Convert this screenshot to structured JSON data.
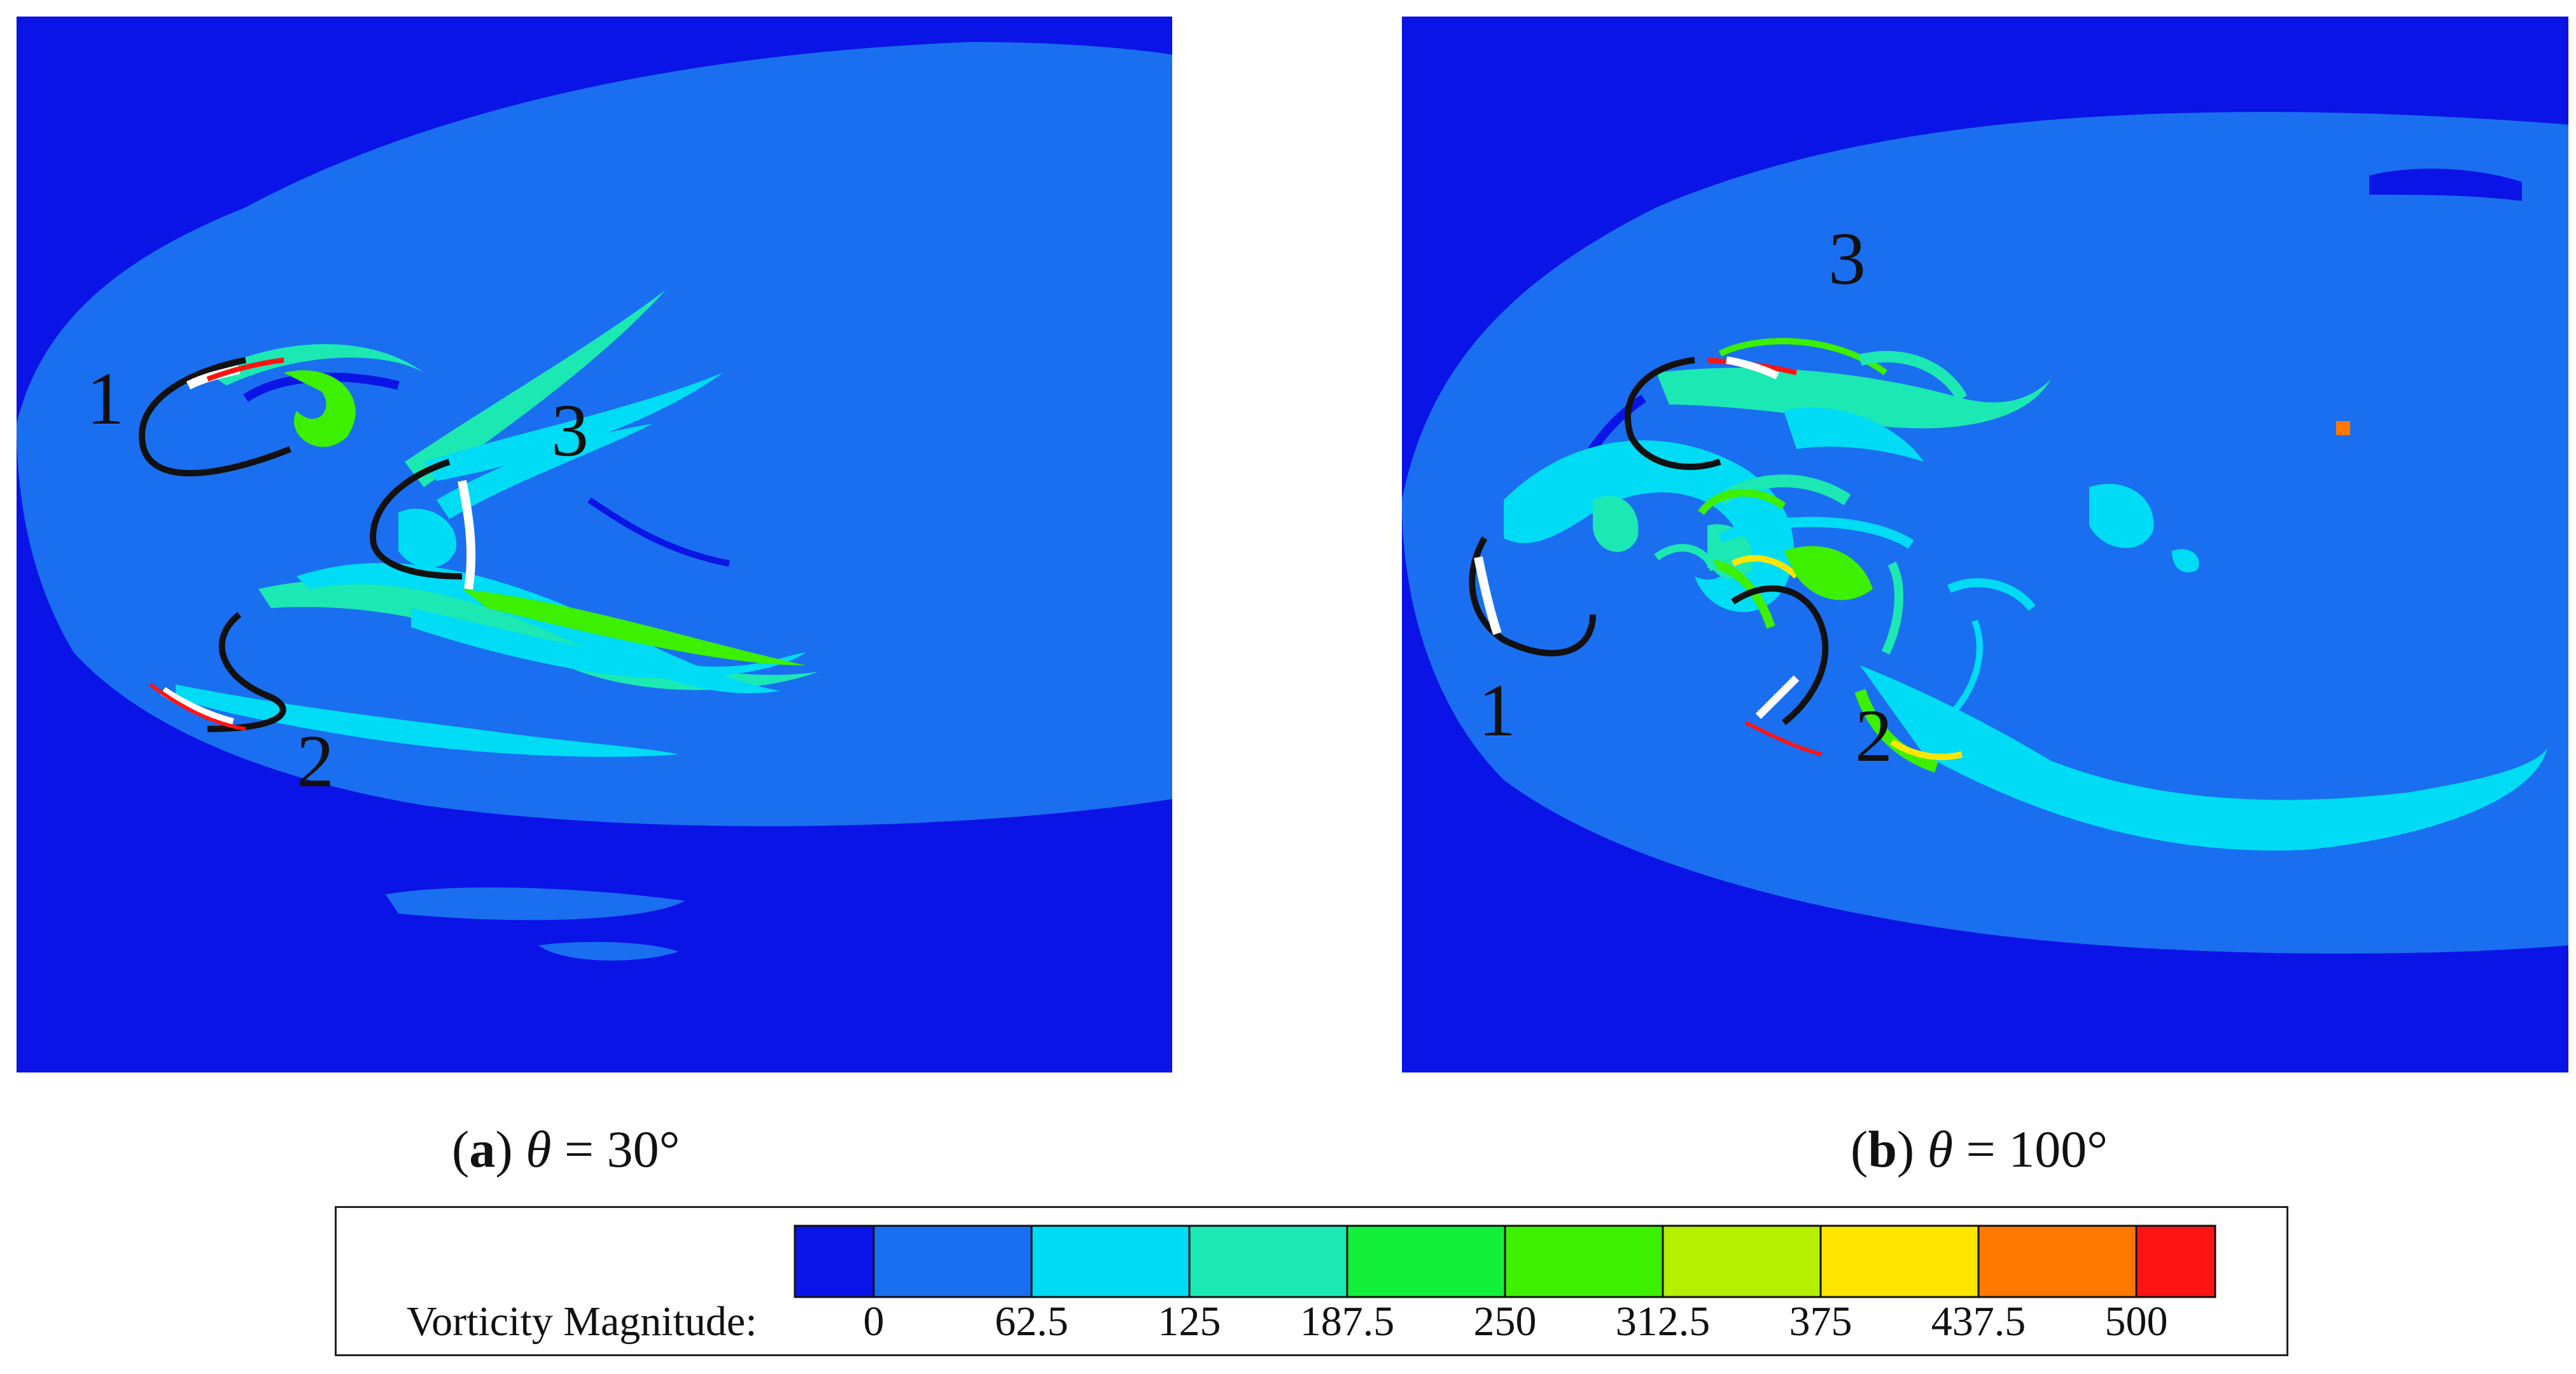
{
  "panels": [
    {
      "id": "a",
      "caption_letter": "a",
      "caption_theta": "θ",
      "caption_value": " = 30°",
      "rotor_labels": [
        "1",
        "2",
        "3"
      ]
    },
    {
      "id": "b",
      "caption_letter": "b",
      "caption_theta": "θ",
      "caption_value": " = 100°",
      "rotor_labels": [
        "1",
        "2",
        "3"
      ]
    }
  ],
  "legend": {
    "title": "Vorticity Magnitude:",
    "ticks": [
      "0",
      "62.5",
      "125",
      "187.5",
      "250",
      "312.5",
      "375",
      "437.5",
      "500"
    ],
    "colors": [
      "#0a14e6",
      "#1a6ff0",
      "#00dcf5",
      "#1ce8b4",
      "#13f03c",
      "#3cf000",
      "#b4f000",
      "#ffe600",
      "#ff7800",
      "#ff1414"
    ]
  }
}
